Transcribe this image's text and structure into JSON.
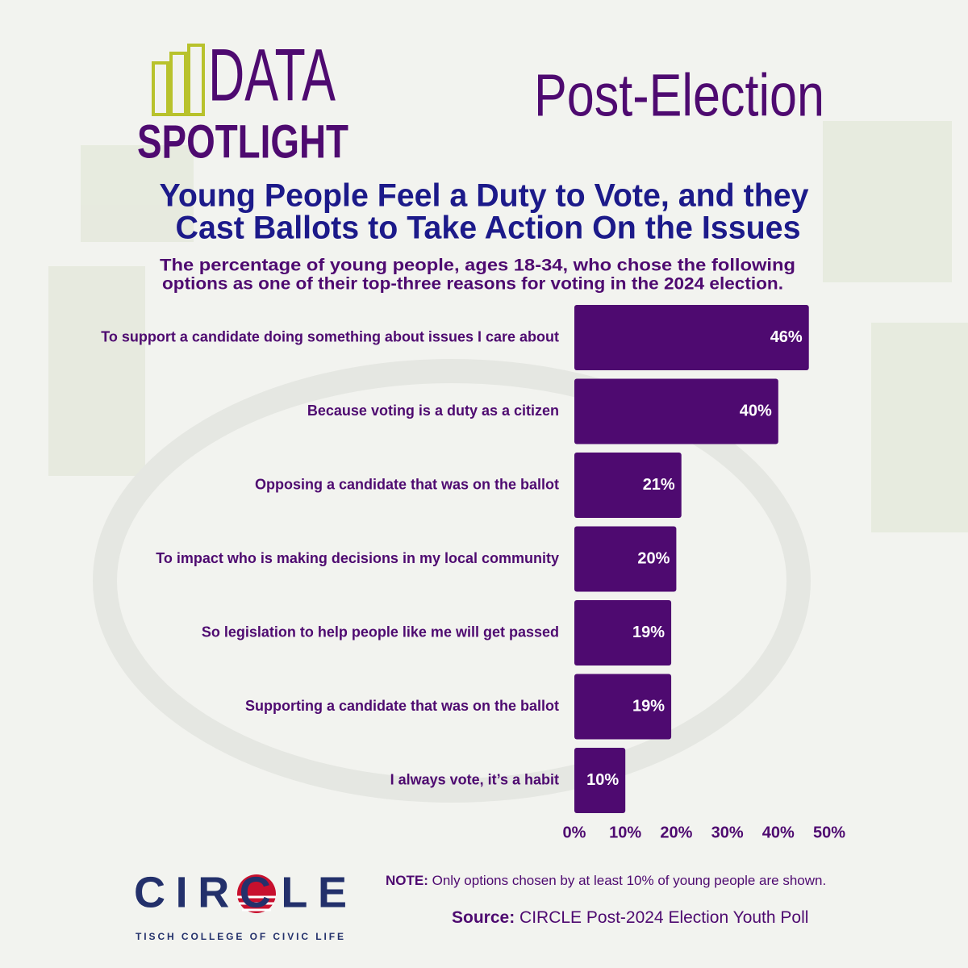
{
  "header": {
    "logo_top": "DATA",
    "logo_bottom": "SPOTLIGHT",
    "tag": "Post-Election"
  },
  "chart_data": {
    "type": "bar",
    "orientation": "horizontal",
    "title": [
      "Young People Feel a Duty to Vote, and they",
      "Cast Ballots to Take Action On the Issues"
    ],
    "subtitle": [
      "The percentage of young people, ages 18-34, who chose the following",
      "options as one of their top-three reasons for voting in the 2024 election."
    ],
    "categories": [
      "To support a candidate doing something about issues I care about",
      "Because voting is a duty as a citizen",
      "Opposing a candidate that was on the ballot",
      "To impact who is making decisions in my local community",
      "So legislation to help people like me will get passed",
      "Supporting a candidate that was on the ballot",
      "I always vote, it’s a habit"
    ],
    "values": [
      46,
      40,
      21,
      20,
      19,
      19,
      10
    ],
    "value_labels": [
      "46%",
      "40%",
      "21%",
      "20%",
      "19%",
      "19%",
      "10%"
    ],
    "color": "#4e0a70",
    "xlim": [
      0,
      50
    ],
    "xticks": [
      {
        "value": 0,
        "label": "0%"
      },
      {
        "value": 10,
        "label": "10%"
      },
      {
        "value": 20,
        "label": "20%"
      },
      {
        "value": 30,
        "label": "30%"
      },
      {
        "value": 40,
        "label": "40%"
      },
      {
        "value": 50,
        "label": "50%"
      }
    ],
    "grid": false
  },
  "footer": {
    "note_label": "NOTE:",
    "note_text": "Only options chosen by at least 10% of young people are shown.",
    "source_label": "Source:",
    "source_text": "CIRCLE Post-2024 Election Youth Poll",
    "logo": "CIRCLE",
    "logo_sub": "TISCH COLLEGE OF CIVIC LIFE"
  }
}
